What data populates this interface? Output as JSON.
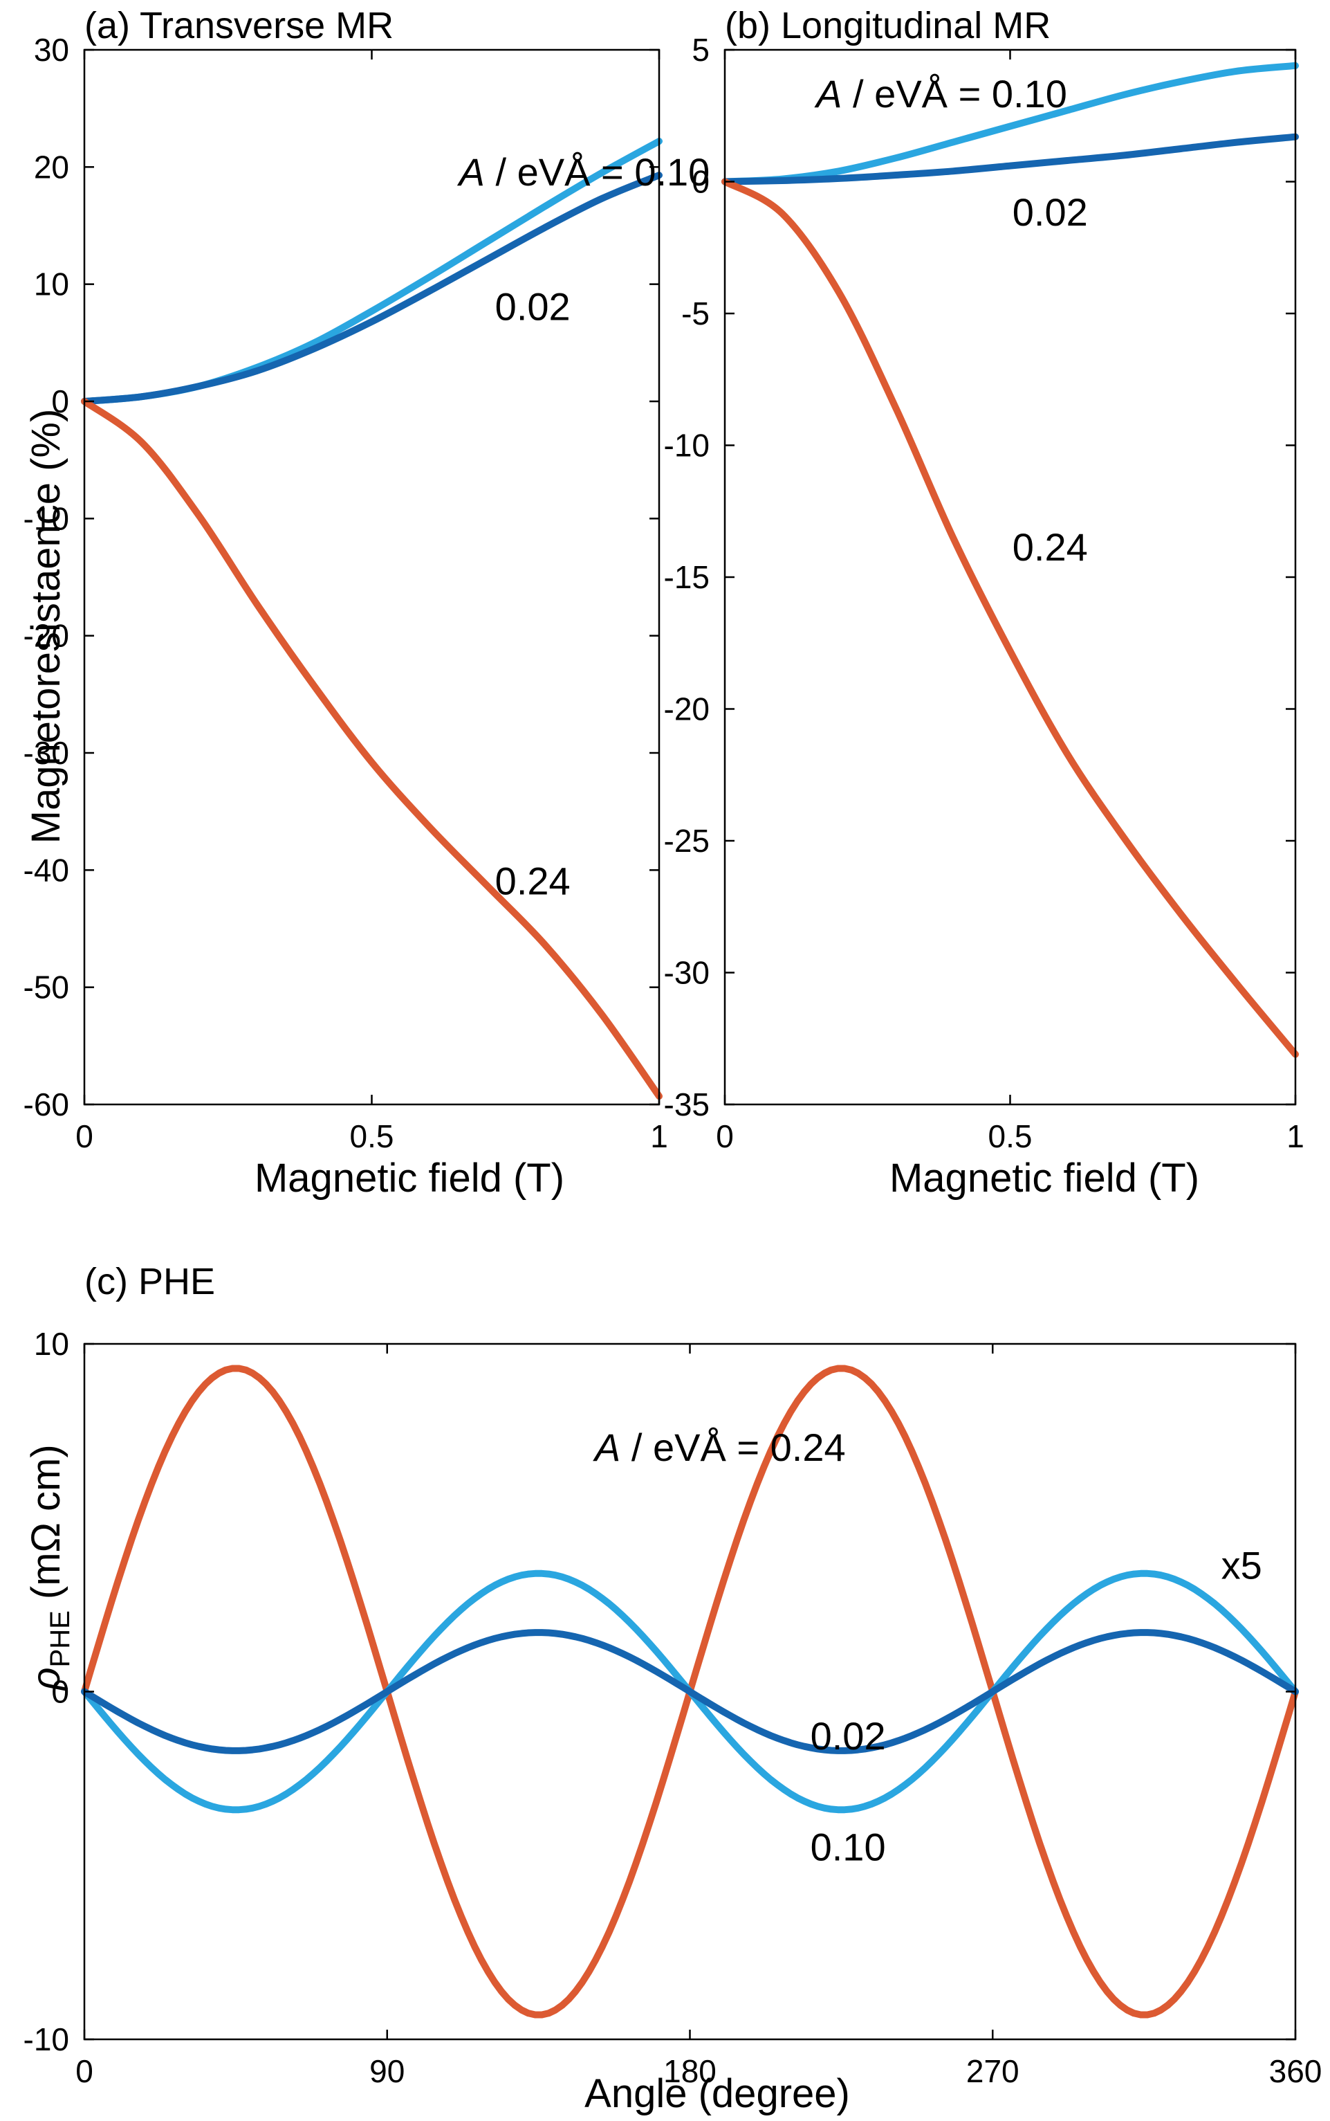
{
  "chart_data": [
    {
      "type": "line",
      "title": "(a) Transverse MR",
      "xlabel": "Magnetic field (T)",
      "ylabel": "Magnetoresistaence (%)",
      "xlim": [
        0,
        1
      ],
      "ylim": [
        -60,
        30
      ],
      "xticks": [
        "0",
        "0.5",
        "1"
      ],
      "yticks": [
        "30",
        "20",
        "10",
        "0",
        "-10",
        "-20",
        "-30",
        "-40",
        "-50",
        "-60"
      ],
      "grid": false,
      "series": [
        {
          "color": "#2aa6e0",
          "x": [
            0,
            0.1,
            0.2,
            0.3,
            0.4,
            0.5,
            0.6,
            0.7,
            0.8,
            0.9,
            1.0
          ],
          "y": [
            0,
            0.4,
            1.3,
            2.9,
            5.0,
            7.7,
            10.6,
            13.6,
            16.6,
            19.5,
            22.2
          ]
        },
        {
          "color": "#1565b0",
          "x": [
            0,
            0.1,
            0.2,
            0.3,
            0.4,
            0.5,
            0.6,
            0.7,
            0.8,
            0.9,
            1.0
          ],
          "y": [
            0,
            0.4,
            1.3,
            2.6,
            4.5,
            6.8,
            9.4,
            12.1,
            14.8,
            17.3,
            19.3
          ]
        },
        {
          "color": "#dc5a32",
          "x": [
            0,
            0.1,
            0.2,
            0.3,
            0.4,
            0.5,
            0.6,
            0.7,
            0.8,
            0.9,
            1.0
          ],
          "y": [
            0,
            -3.5,
            -9.8,
            -17.3,
            -24.3,
            -30.8,
            -36.3,
            -41.3,
            -46.3,
            -52.3,
            -59.3
          ]
        }
      ],
      "annotations": [
        {
          "text": "A / eVÅ = 0.10",
          "x": 0.87,
          "y": 19.5
        },
        {
          "text": "0.02",
          "x": 0.78,
          "y": 8.0
        },
        {
          "text": "0.24",
          "x": 0.78,
          "y": -41.0
        }
      ]
    },
    {
      "type": "line",
      "title": "(b) Longitudinal MR",
      "xlabel": "Magnetic field (T)",
      "ylabel": "",
      "xlim": [
        0,
        1
      ],
      "ylim": [
        -35,
        5
      ],
      "xticks": [
        "0",
        "0.5",
        "1"
      ],
      "yticks": [
        "5",
        "0",
        "-5",
        "-10",
        "-15",
        "-20",
        "-25",
        "-30",
        "-35"
      ],
      "grid": false,
      "series": [
        {
          "color": "#2aa6e0",
          "x": [
            0,
            0.1,
            0.2,
            0.3,
            0.4,
            0.5,
            0.6,
            0.7,
            0.8,
            0.9,
            1.0
          ],
          "y": [
            0,
            0.1,
            0.4,
            0.9,
            1.5,
            2.1,
            2.7,
            3.3,
            3.8,
            4.2,
            4.4
          ]
        },
        {
          "color": "#1565b0",
          "x": [
            0,
            0.1,
            0.2,
            0.3,
            0.4,
            0.5,
            0.6,
            0.7,
            0.8,
            0.9,
            1.0
          ],
          "y": [
            0,
            0.04,
            0.12,
            0.25,
            0.4,
            0.6,
            0.8,
            1.0,
            1.25,
            1.5,
            1.7
          ]
        },
        {
          "color": "#dc5a32",
          "x": [
            0,
            0.1,
            0.2,
            0.3,
            0.4,
            0.5,
            0.6,
            0.7,
            0.8,
            0.9,
            1.0
          ],
          "y": [
            0,
            -1.2,
            -4.2,
            -8.6,
            -13.5,
            -17.8,
            -21.7,
            -24.9,
            -27.8,
            -30.5,
            -33.1
          ]
        }
      ],
      "annotations": [
        {
          "text": "A / eVÅ = 0.10",
          "x": 0.38,
          "y": 3.3
        },
        {
          "text": "0.02",
          "x": 0.57,
          "y": -1.2
        },
        {
          "text": "0.24",
          "x": 0.57,
          "y": -13.9
        }
      ]
    },
    {
      "type": "line",
      "title": "(c) PHE",
      "xlabel": "Angle (degree)",
      "ylabel": "ρPHE (mΩ cm)",
      "xlim": [
        0,
        360
      ],
      "ylim": [
        -10,
        10
      ],
      "xticks": [
        "0",
        "90",
        "180",
        "270",
        "360"
      ],
      "yticks": [
        "10",
        "0",
        "-10"
      ],
      "grid": false,
      "series": [
        {
          "color": "#dc5a32",
          "x": [
            0,
            45,
            90,
            135,
            180,
            225,
            270,
            315,
            360
          ],
          "y": [
            0,
            9.3,
            0,
            -9.3,
            0,
            9.3,
            0,
            -9.3,
            0
          ]
        },
        {
          "color": "#2aa6e0",
          "x": [
            0,
            45,
            90,
            135,
            180,
            225,
            270,
            315,
            360
          ],
          "y": [
            0,
            -3.4,
            0,
            3.4,
            0,
            -3.4,
            0,
            3.4,
            0
          ]
        },
        {
          "color": "#1565b0",
          "x": [
            0,
            45,
            90,
            135,
            180,
            225,
            270,
            315,
            360
          ],
          "y": [
            0,
            -1.7,
            0,
            1.7,
            0,
            -1.7,
            0,
            1.7,
            0
          ]
        }
      ],
      "annotations": [
        {
          "text": "A / eVÅ =  0.24",
          "x": 189,
          "y": 7.0
        },
        {
          "text": "x5",
          "x": 344,
          "y": 3.6
        },
        {
          "text": "0.02",
          "x": 227,
          "y": -1.3
        },
        {
          "text": "0.10",
          "x": 227,
          "y": -4.5
        }
      ]
    }
  ]
}
